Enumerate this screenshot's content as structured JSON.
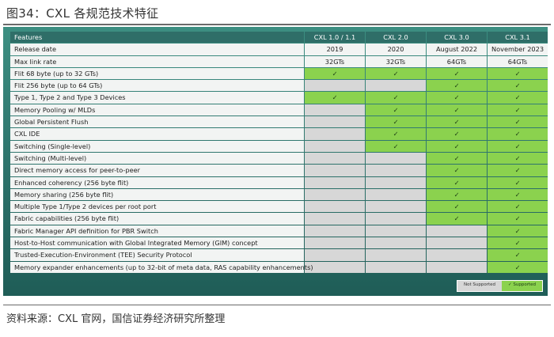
{
  "figure_title": "图34：CXL 各规范技术特征",
  "source": "资料来源：CXL 官网，国信证券经济研究所整理",
  "columns": [
    "Features",
    "CXL 1.0 / 1.1",
    "CXL 2.0",
    "CXL 3.0",
    "CXL 3.1"
  ],
  "text_rows": [
    {
      "feature": "Release date",
      "values": [
        "2019",
        "2020",
        "August 2022",
        "November 2023"
      ]
    },
    {
      "feature": "Max link rate",
      "values": [
        "32GTs",
        "32GTs",
        "64GTs",
        "64GTs"
      ]
    }
  ],
  "check_glyph": "✓",
  "feature_rows": [
    {
      "feature": "Flit 68 byte (up to 32 GTs)",
      "support": [
        true,
        true,
        true,
        true
      ]
    },
    {
      "feature": "Flit 256 byte (up to 64 GTs)",
      "support": [
        false,
        false,
        true,
        true
      ]
    },
    {
      "feature": "Type 1, Type 2 and Type 3 Devices",
      "support": [
        true,
        true,
        true,
        true
      ]
    },
    {
      "feature": "Memory Pooling w/ MLDs",
      "support": [
        false,
        true,
        true,
        true
      ]
    },
    {
      "feature": "Global Persistent Flush",
      "support": [
        false,
        true,
        true,
        true
      ]
    },
    {
      "feature": "CXL IDE",
      "support": [
        false,
        true,
        true,
        true
      ]
    },
    {
      "feature": "Switching (Single-level)",
      "support": [
        false,
        true,
        true,
        true
      ]
    },
    {
      "feature": "Switching (Multi-level)",
      "support": [
        false,
        false,
        true,
        true
      ]
    },
    {
      "feature": "Direct memory access for peer-to-peer",
      "support": [
        false,
        false,
        true,
        true
      ]
    },
    {
      "feature": "Enhanced coherency (256 byte flit)",
      "support": [
        false,
        false,
        true,
        true
      ]
    },
    {
      "feature": "Memory sharing (256 byte flit)",
      "support": [
        false,
        false,
        true,
        true
      ]
    },
    {
      "feature": "Multiple Type 1/Type 2 devices per root port",
      "support": [
        false,
        false,
        true,
        true
      ]
    },
    {
      "feature": "Fabric capabilities (256 byte flit)",
      "support": [
        false,
        false,
        true,
        true
      ]
    },
    {
      "feature": "Fabric Manager API definition for PBR Switch",
      "support": [
        false,
        false,
        false,
        true
      ]
    },
    {
      "feature": "Host-to-Host communication with Global Integrated Memory (GIM) concept",
      "support": [
        false,
        false,
        false,
        true
      ]
    },
    {
      "feature": "Trusted-Execution-Environment (TEE) Security Protocol",
      "support": [
        false,
        false,
        false,
        true
      ]
    },
    {
      "feature": "Memory expander enhancements (up to 32-bit of meta data, RAS capability enhancements)",
      "support": [
        false,
        false,
        false,
        true
      ]
    }
  ],
  "legend": {
    "not_supported": "Not Supported",
    "supported": "✓  Supported"
  },
  "colors": {
    "supported": "#8bd24e",
    "not_supported": "#d7d7d7",
    "header": "#2f6e68",
    "panel": "#2b6f68"
  }
}
